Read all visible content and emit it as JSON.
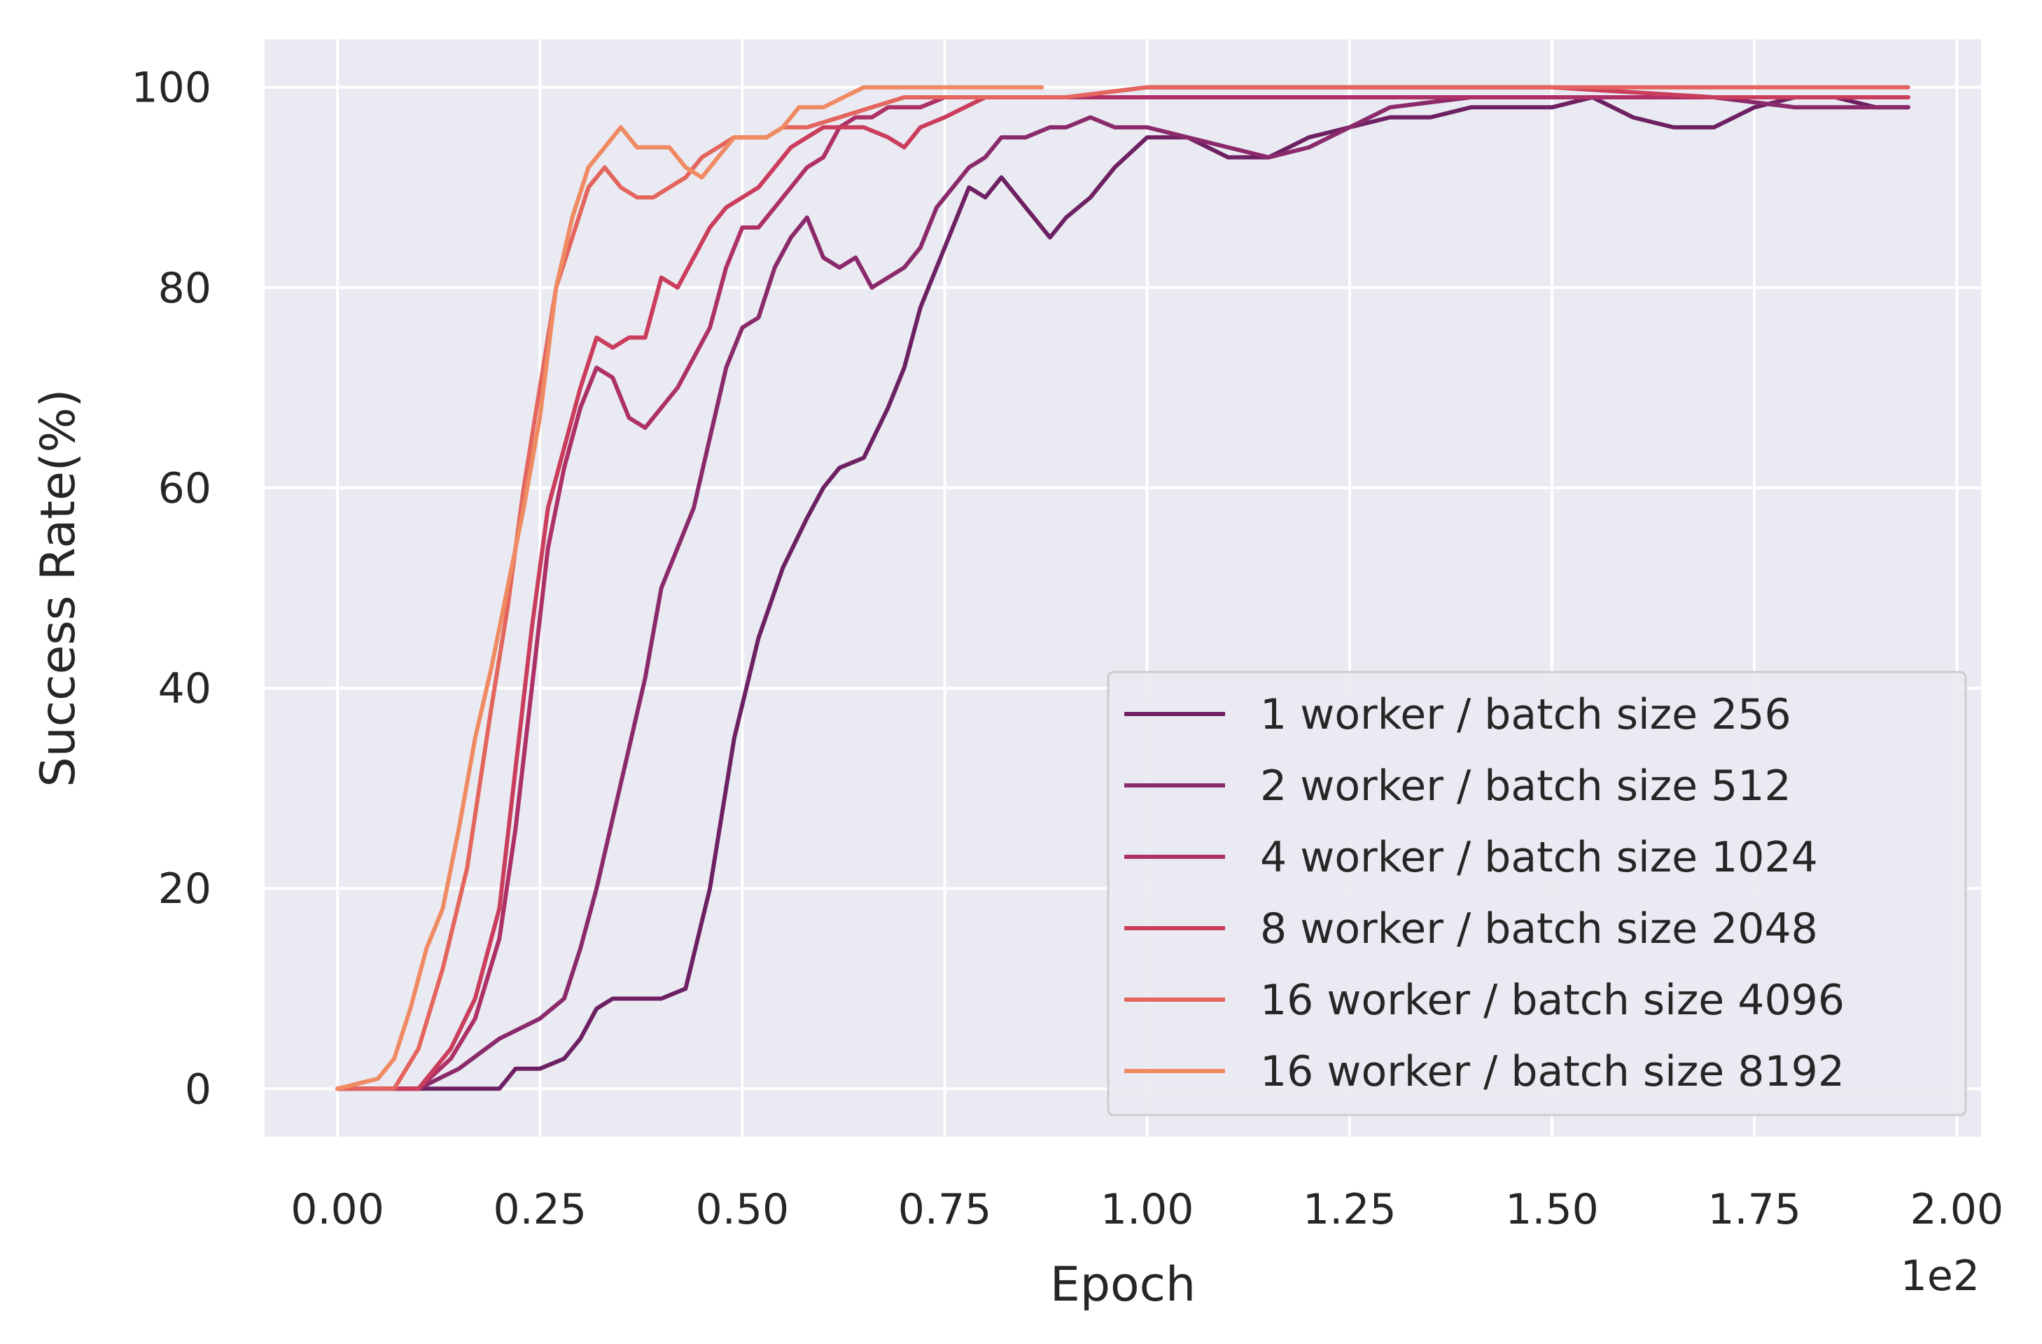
{
  "chart_data": {
    "type": "line",
    "xlabel": "Epoch",
    "ylabel": "Success Rate(%)",
    "x_offset_text": "1e2",
    "xlim": [
      -0.09,
      2.03
    ],
    "ylim": [
      -4.8,
      104.8
    ],
    "x_ticks": [
      0.0,
      0.25,
      0.5,
      0.75,
      1.0,
      1.25,
      1.5,
      1.75,
      2.0
    ],
    "x_tick_labels": [
      "0.00",
      "0.25",
      "0.50",
      "0.75",
      "1.00",
      "1.25",
      "1.50",
      "1.75",
      "2.00"
    ],
    "y_ticks": [
      0,
      20,
      40,
      60,
      80,
      100
    ],
    "y_tick_labels": [
      "0",
      "20",
      "40",
      "60",
      "80",
      "100"
    ],
    "grid": true,
    "legend_position": "lower-right",
    "series": [
      {
        "name": "1 worker / batch size 256",
        "color": "#6d2163",
        "x": [
          0.0,
          0.1,
          0.2,
          0.22,
          0.25,
          0.28,
          0.3,
          0.32,
          0.34,
          0.37,
          0.4,
          0.43,
          0.46,
          0.49,
          0.52,
          0.55,
          0.58,
          0.6,
          0.62,
          0.65,
          0.68,
          0.7,
          0.72,
          0.75,
          0.78,
          0.8,
          0.82,
          0.85,
          0.88,
          0.9,
          0.93,
          0.96,
          1.0,
          1.05,
          1.1,
          1.15,
          1.2,
          1.25,
          1.3,
          1.35,
          1.4,
          1.45,
          1.5,
          1.55,
          1.6,
          1.65,
          1.7,
          1.75,
          1.8,
          1.85,
          1.9,
          1.94
        ],
        "y": [
          0,
          0,
          0,
          2,
          2,
          3,
          5,
          8,
          9,
          9,
          9,
          10,
          20,
          35,
          45,
          52,
          57,
          60,
          62,
          63,
          68,
          72,
          78,
          84,
          90,
          89,
          91,
          88,
          85,
          87,
          89,
          92,
          95,
          95,
          93,
          93,
          95,
          96,
          97,
          97,
          98,
          98,
          98,
          99,
          97,
          96,
          96,
          98,
          99,
          99,
          98,
          98
        ]
      },
      {
        "name": "2 worker / batch size 512",
        "color": "#8b2a6b",
        "x": [
          0.0,
          0.1,
          0.15,
          0.2,
          0.25,
          0.28,
          0.3,
          0.32,
          0.34,
          0.36,
          0.38,
          0.4,
          0.42,
          0.44,
          0.46,
          0.48,
          0.5,
          0.52,
          0.54,
          0.56,
          0.58,
          0.6,
          0.62,
          0.64,
          0.66,
          0.68,
          0.7,
          0.72,
          0.74,
          0.76,
          0.78,
          0.8,
          0.82,
          0.85,
          0.88,
          0.9,
          0.93,
          0.96,
          1.0,
          1.05,
          1.1,
          1.15,
          1.2,
          1.25,
          1.3,
          1.4,
          1.5,
          1.6,
          1.7,
          1.8,
          1.9,
          1.94
        ],
        "y": [
          0,
          0,
          2,
          5,
          7,
          9,
          14,
          20,
          27,
          34,
          41,
          50,
          54,
          58,
          65,
          72,
          76,
          77,
          82,
          85,
          87,
          83,
          82,
          83,
          80,
          81,
          82,
          84,
          88,
          90,
          92,
          93,
          95,
          95,
          96,
          96,
          97,
          96,
          96,
          95,
          94,
          93,
          94,
          96,
          98,
          99,
          99,
          99,
          99,
          98,
          98,
          98
        ]
      },
      {
        "name": "4 worker / batch size 1024",
        "color": "#ad3167",
        "x": [
          0.0,
          0.1,
          0.14,
          0.17,
          0.2,
          0.22,
          0.24,
          0.26,
          0.28,
          0.3,
          0.32,
          0.34,
          0.36,
          0.38,
          0.4,
          0.42,
          0.44,
          0.46,
          0.48,
          0.5,
          0.52,
          0.54,
          0.56,
          0.58,
          0.6,
          0.62,
          0.64,
          0.66,
          0.68,
          0.7,
          0.72,
          0.75,
          0.78,
          0.8,
          0.85,
          0.9,
          0.95,
          1.0,
          1.1,
          1.2,
          1.3,
          1.5,
          1.7,
          1.9,
          1.94
        ],
        "y": [
          0,
          0,
          3,
          7,
          15,
          26,
          40,
          54,
          62,
          68,
          72,
          71,
          67,
          66,
          68,
          70,
          73,
          76,
          82,
          86,
          86,
          88,
          90,
          92,
          93,
          96,
          97,
          97,
          98,
          98,
          98,
          99,
          99,
          99,
          99,
          99,
          99,
          99,
          99,
          99,
          99,
          99,
          99,
          99,
          99
        ]
      },
      {
        "name": "8 worker / batch size 2048",
        "color": "#cb3d5c",
        "x": [
          0.0,
          0.1,
          0.14,
          0.17,
          0.2,
          0.22,
          0.24,
          0.26,
          0.28,
          0.3,
          0.32,
          0.34,
          0.36,
          0.38,
          0.4,
          0.42,
          0.44,
          0.46,
          0.48,
          0.5,
          0.52,
          0.54,
          0.56,
          0.58,
          0.6,
          0.62,
          0.65,
          0.68,
          0.7,
          0.72,
          0.75,
          0.8,
          0.85,
          0.9,
          1.0,
          1.1,
          1.2,
          1.3,
          1.5,
          1.7,
          1.9,
          1.94
        ],
        "y": [
          0,
          0,
          4,
          9,
          18,
          32,
          46,
          58,
          64,
          70,
          75,
          74,
          75,
          75,
          81,
          80,
          83,
          86,
          88,
          89,
          90,
          92,
          94,
          95,
          96,
          96,
          96,
          95,
          94,
          96,
          97,
          99,
          99,
          99,
          100,
          100,
          100,
          100,
          100,
          99,
          99,
          99
        ]
      },
      {
        "name": "16 worker / batch size 4096",
        "color": "#e3655d",
        "x": [
          0.0,
          0.07,
          0.1,
          0.13,
          0.16,
          0.19,
          0.21,
          0.23,
          0.25,
          0.27,
          0.29,
          0.31,
          0.33,
          0.35,
          0.37,
          0.39,
          0.41,
          0.43,
          0.45,
          0.47,
          0.49,
          0.51,
          0.53,
          0.55,
          0.58,
          0.62,
          0.66,
          0.7,
          0.8,
          0.9,
          1.0,
          1.1,
          1.2,
          1.3,
          1.5,
          1.7,
          1.8,
          1.9,
          1.94
        ],
        "y": [
          0,
          0,
          4,
          12,
          22,
          38,
          48,
          60,
          70,
          80,
          85,
          90,
          92,
          90,
          89,
          89,
          90,
          91,
          93,
          94,
          95,
          95,
          95,
          96,
          96,
          97,
          98,
          99,
          99,
          99,
          100,
          100,
          100,
          100,
          100,
          100,
          100,
          100,
          100
        ]
      },
      {
        "name": "16 worker / batch size 8192",
        "color": "#ef8a62",
        "x": [
          0.0,
          0.05,
          0.07,
          0.09,
          0.11,
          0.13,
          0.15,
          0.17,
          0.19,
          0.21,
          0.23,
          0.25,
          0.27,
          0.29,
          0.31,
          0.33,
          0.35,
          0.37,
          0.39,
          0.41,
          0.43,
          0.45,
          0.47,
          0.49,
          0.51,
          0.53,
          0.55,
          0.57,
          0.6,
          0.65,
          0.7,
          0.75,
          0.8,
          0.87
        ],
        "y": [
          0,
          1,
          3,
          8,
          14,
          18,
          26,
          35,
          42,
          50,
          58,
          67,
          80,
          87,
          92,
          94,
          96,
          94,
          94,
          94,
          92,
          91,
          93,
          95,
          95,
          95,
          96,
          98,
          98,
          100,
          100,
          100,
          100,
          100
        ]
      }
    ]
  }
}
